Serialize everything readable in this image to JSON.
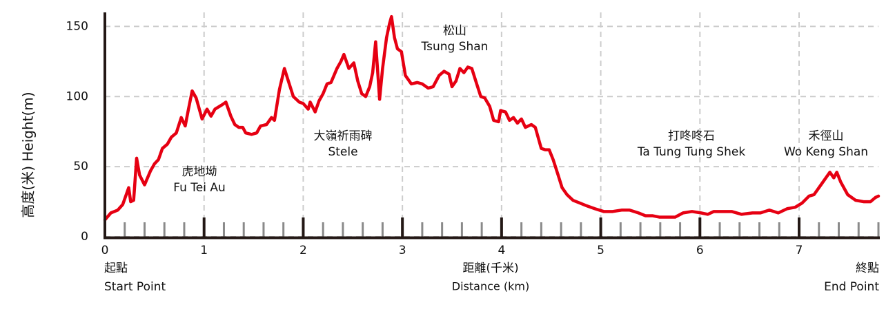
{
  "chart_data": {
    "type": "line",
    "color": "#e60012",
    "ylabel": "高度(米) Height(m)",
    "xlabel": [
      "距離(千米)",
      "Distance (km)"
    ],
    "start_label": [
      "起點",
      "Start Point"
    ],
    "end_label": [
      "終點",
      "End Point"
    ],
    "annotations": [
      [
        "虎地坳",
        "Fu Tei Au"
      ],
      [
        "大嶺祈雨碑",
        "Stele"
      ],
      [
        "松山",
        "Tsung Shan"
      ],
      [
        "打咚咚石",
        "Ta Tung Tung Shek"
      ],
      [
        "禾徑山",
        "Wo Keng Shan"
      ]
    ],
    "xlim": [
      0,
      7.8
    ],
    "ylim": [
      0,
      160
    ],
    "xticks": [
      0,
      1,
      2,
      3,
      4,
      5,
      6,
      7
    ],
    "minor_xticks": [
      0.2,
      0.4,
      0.6,
      0.8,
      1.2,
      1.4,
      1.6,
      1.8,
      2.2,
      2.4,
      2.6,
      2.8,
      3.2,
      3.4,
      3.6,
      3.8,
      4.2,
      4.4,
      4.6,
      4.8,
      5.2,
      5.4,
      5.6,
      5.8,
      6.2,
      6.4,
      6.6,
      6.8,
      7.2,
      7.4,
      7.6,
      7.8
    ],
    "yticks": [
      0,
      50,
      100,
      150
    ],
    "grid": true,
    "x": [
      0,
      0.06,
      0.13,
      0.18,
      0.22,
      0.24,
      0.26,
      0.29,
      0.32,
      0.35,
      0.4,
      0.46,
      0.5,
      0.54,
      0.58,
      0.63,
      0.67,
      0.72,
      0.77,
      0.81,
      0.84,
      0.88,
      0.92,
      0.98,
      1.03,
      1.07,
      1.11,
      1.18,
      1.22,
      1.27,
      1.31,
      1.35,
      1.39,
      1.42,
      1.48,
      1.53,
      1.57,
      1.63,
      1.68,
      1.71,
      1.76,
      1.81,
      1.85,
      1.9,
      1.96,
      2.0,
      2.05,
      2.07,
      2.12,
      2.16,
      2.2,
      2.24,
      2.28,
      2.34,
      2.38,
      2.41,
      2.46,
      2.51,
      2.55,
      2.59,
      2.63,
      2.67,
      2.7,
      2.73,
      2.77,
      2.8,
      2.84,
      2.87,
      2.89,
      2.92,
      2.95,
      2.99,
      3.03,
      3.09,
      3.15,
      3.2,
      3.26,
      3.31,
      3.37,
      3.42,
      3.47,
      3.5,
      3.54,
      3.58,
      3.62,
      3.66,
      3.7,
      3.74,
      3.79,
      3.83,
      3.88,
      3.92,
      3.97,
      3.99,
      4.04,
      4.08,
      4.12,
      4.16,
      4.2,
      4.24,
      4.3,
      4.34,
      4.4,
      4.44,
      4.48,
      4.52,
      4.57,
      4.61,
      4.66,
      4.72,
      4.79,
      4.86,
      4.94,
      5.03,
      5.12,
      5.21,
      5.29,
      5.38,
      5.45,
      5.52,
      5.59,
      5.66,
      5.75,
      5.83,
      5.92,
      6.01,
      6.08,
      6.14,
      6.24,
      6.32,
      6.42,
      6.53,
      6.61,
      6.7,
      6.79,
      6.88,
      6.96,
      7.03,
      7.1,
      7.15,
      7.21,
      7.27,
      7.31,
      7.35,
      7.38,
      7.42,
      7.49,
      7.57,
      7.65,
      7.72,
      7.77,
      7.8
    ],
    "values": [
      12,
      17,
      19,
      23,
      31,
      35,
      25,
      26,
      56,
      44,
      37,
      47,
      52,
      55,
      63,
      66,
      71,
      74,
      85,
      79,
      90,
      104,
      99,
      84,
      91,
      86,
      91,
      94,
      96,
      86,
      80,
      78,
      78,
      74,
      73,
      74,
      79,
      80,
      85,
      83,
      105,
      120,
      111,
      100,
      96,
      95,
      91,
      96,
      89,
      97,
      102,
      109,
      110,
      120,
      125,
      130,
      120,
      124,
      111,
      102,
      100,
      107,
      117,
      139,
      98,
      120,
      142,
      152,
      157,
      142,
      134,
      132,
      115,
      109,
      110,
      109,
      106,
      107,
      115,
      118,
      116,
      107,
      111,
      120,
      117,
      121,
      120,
      111,
      100,
      99,
      93,
      83,
      82,
      90,
      89,
      83,
      85,
      81,
      84,
      78,
      80,
      78,
      63,
      62,
      62,
      55,
      44,
      35,
      30,
      26,
      24,
      22,
      20,
      18,
      18,
      19,
      19,
      17,
      15,
      15,
      14,
      14,
      14,
      17,
      18,
      17,
      16,
      18,
      18,
      18,
      16,
      17,
      17,
      19,
      17,
      20,
      21,
      24,
      29,
      30,
      36,
      42,
      46,
      42,
      46,
      39,
      30,
      26,
      25,
      25,
      28,
      29
    ]
  }
}
